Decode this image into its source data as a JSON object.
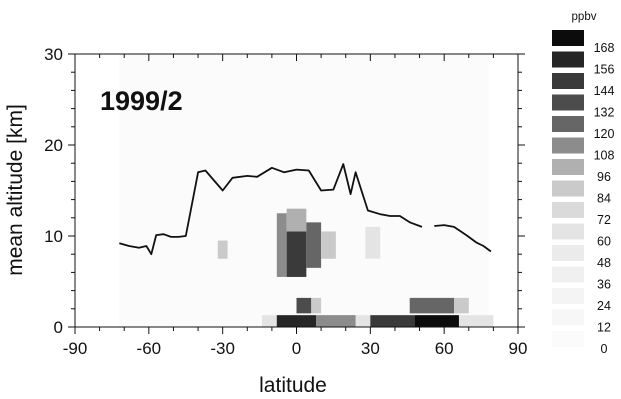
{
  "chart_data": {
    "type": "heatmap",
    "title": "",
    "panel_label": "1999/2",
    "xlabel": "latitude",
    "ylabel": "mean altitude [km]",
    "xlim": [
      -90,
      90
    ],
    "ylim": [
      0,
      30
    ],
    "xticks": [
      -90,
      -60,
      -30,
      0,
      30,
      60,
      90
    ],
    "yticks": [
      0,
      10,
      20,
      30
    ],
    "grid": false,
    "colorbar": {
      "unit": "ppbv",
      "levels": [
        168,
        156,
        144,
        132,
        120,
        108,
        96,
        84,
        72,
        60,
        48,
        36,
        24,
        12,
        0
      ],
      "colors": [
        "#0c0c0c",
        "#262626",
        "#3a3a3a",
        "#4c4c4c",
        "#666666",
        "#8c8c8c",
        "#b0b0b0",
        "#cacaca",
        "#dadada",
        "#e4e4e4",
        "#ebebeb",
        "#f0f0f0",
        "#f4f4f4",
        "#f7f7f7",
        "#fbfbfb"
      ]
    },
    "background_cells": [
      {
        "lat_range": [
          -72,
          78
        ],
        "alt_range": [
          0,
          30
        ],
        "value": 8
      }
    ],
    "cells": [
      {
        "lat_range": [
          -32,
          -28
        ],
        "alt_range": [
          7.5,
          9.5
        ],
        "value": 95
      },
      {
        "lat_range": [
          -8,
          -4
        ],
        "alt_range": [
          5.5,
          12.5
        ],
        "value": 110
      },
      {
        "lat_range": [
          -4,
          4
        ],
        "alt_range": [
          5.5,
          10.5
        ],
        "value": 150
      },
      {
        "lat_range": [
          -4,
          4
        ],
        "alt_range": [
          10.5,
          13.0
        ],
        "value": 100
      },
      {
        "lat_range": [
          4,
          10
        ],
        "alt_range": [
          6.5,
          11.5
        ],
        "value": 125
      },
      {
        "lat_range": [
          10,
          16
        ],
        "alt_range": [
          7.5,
          10.5
        ],
        "value": 95
      },
      {
        "lat_range": [
          28,
          34
        ],
        "alt_range": [
          7.5,
          11.0
        ],
        "value": 65
      },
      {
        "lat_range": [
          -14,
          80
        ],
        "alt_range": [
          0,
          1.3
        ],
        "value": 70
      },
      {
        "lat_range": [
          -8,
          8
        ],
        "alt_range": [
          0,
          1.3
        ],
        "value": 165
      },
      {
        "lat_range": [
          8,
          24
        ],
        "alt_range": [
          0,
          1.3
        ],
        "value": 110
      },
      {
        "lat_range": [
          30,
          48
        ],
        "alt_range": [
          0,
          1.3
        ],
        "value": 150
      },
      {
        "lat_range": [
          48,
          66
        ],
        "alt_range": [
          0,
          1.3
        ],
        "value": 170
      },
      {
        "lat_range": [
          0,
          6
        ],
        "alt_range": [
          1.5,
          3.2
        ],
        "value": 135
      },
      {
        "lat_range": [
          6,
          10
        ],
        "alt_range": [
          1.5,
          3.2
        ],
        "value": 85
      },
      {
        "lat_range": [
          46,
          64
        ],
        "alt_range": [
          1.5,
          3.2
        ],
        "value": 120
      },
      {
        "lat_range": [
          64,
          70
        ],
        "alt_range": [
          1.5,
          3.2
        ],
        "value": 90
      }
    ],
    "series": [
      {
        "segments": [
          [
            [
              -72,
              9.2
            ],
            [
              -68,
              8.9
            ],
            [
              -64,
              8.7
            ],
            [
              -61,
              8.9
            ],
            [
              -59,
              8.0
            ],
            [
              -57,
              10.1
            ],
            [
              -54,
              10.2
            ],
            [
              -51,
              9.9
            ],
            [
              -48,
              9.9
            ],
            [
              -45,
              10.0
            ],
            [
              -40,
              17.0
            ],
            [
              -37,
              17.2
            ],
            [
              -30,
              15.0
            ],
            [
              -26,
              16.4
            ],
            [
              -20,
              16.6
            ],
            [
              -16,
              16.5
            ],
            [
              -10,
              17.5
            ],
            [
              -5,
              17.0
            ],
            [
              0,
              17.3
            ],
            [
              5,
              17.2
            ],
            [
              10,
              15.0
            ],
            [
              15,
              15.1
            ],
            [
              19,
              17.9
            ],
            [
              22,
              14.6
            ],
            [
              24,
              17.0
            ],
            [
              29,
              12.8
            ],
            [
              34,
              12.4
            ],
            [
              38,
              12.2
            ],
            [
              42,
              12.2
            ],
            [
              46,
              11.5
            ],
            [
              51,
              11.0
            ]
          ],
          [
            [
              56,
              11.1
            ],
            [
              60,
              11.2
            ],
            [
              64,
              11.0
            ],
            [
              69,
              10.1
            ],
            [
              73,
              9.3
            ],
            [
              76,
              8.9
            ],
            [
              79,
              8.3
            ]
          ]
        ]
      }
    ]
  }
}
